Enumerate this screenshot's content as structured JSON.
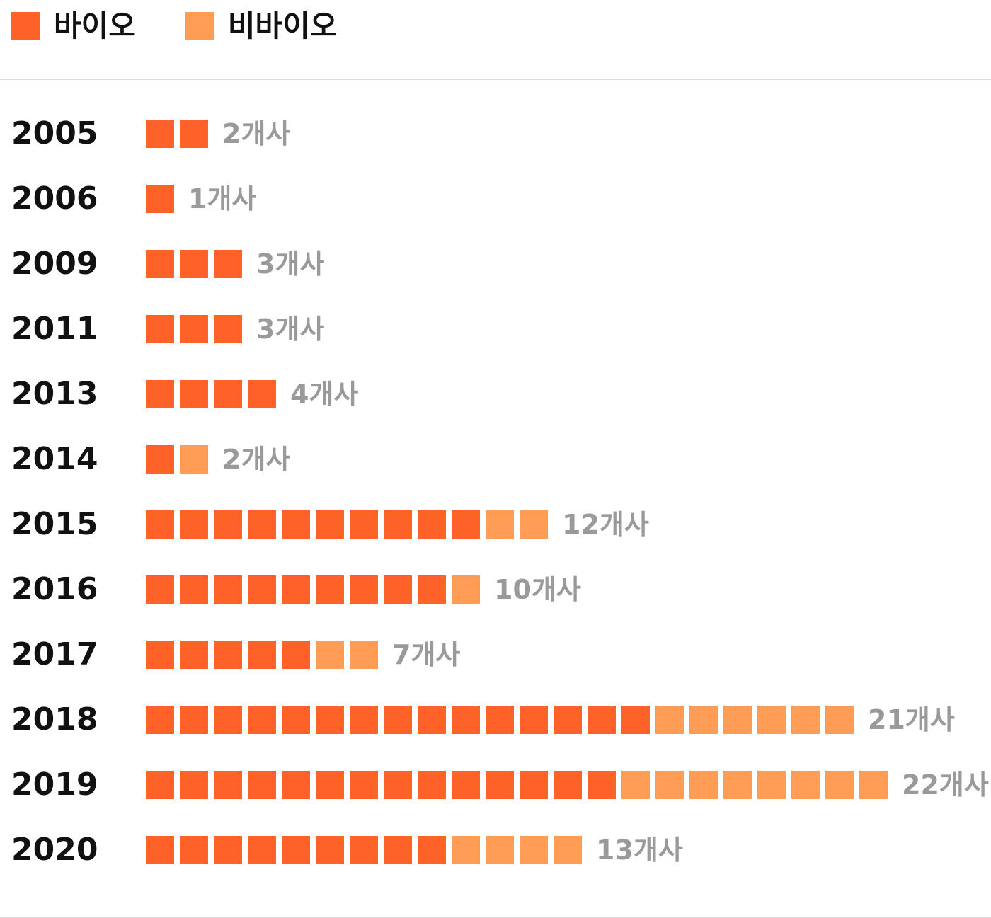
{
  "chart_data": {
    "type": "bar",
    "series": [
      {
        "name": "바이오",
        "color": "#FF6229",
        "values": [
          2,
          1,
          3,
          3,
          4,
          1,
          10,
          9,
          5,
          15,
          14,
          9
        ]
      },
      {
        "name": "비바이오",
        "color": "#FF9C56",
        "values": [
          0,
          0,
          0,
          0,
          0,
          1,
          2,
          1,
          2,
          6,
          8,
          4
        ]
      }
    ],
    "categories": [
      "2005",
      "2006",
      "2009",
      "2011",
      "2013",
      "2014",
      "2015",
      "2016",
      "2017",
      "2018",
      "2019",
      "2020"
    ],
    "data_labels": [
      "2개사",
      "1개사",
      "3개사",
      "3개사",
      "4개사",
      "2개사",
      "12개사",
      "10개사",
      "7개사",
      "21개사",
      "22개사",
      "13개사"
    ],
    "legend_position": "top-left"
  }
}
